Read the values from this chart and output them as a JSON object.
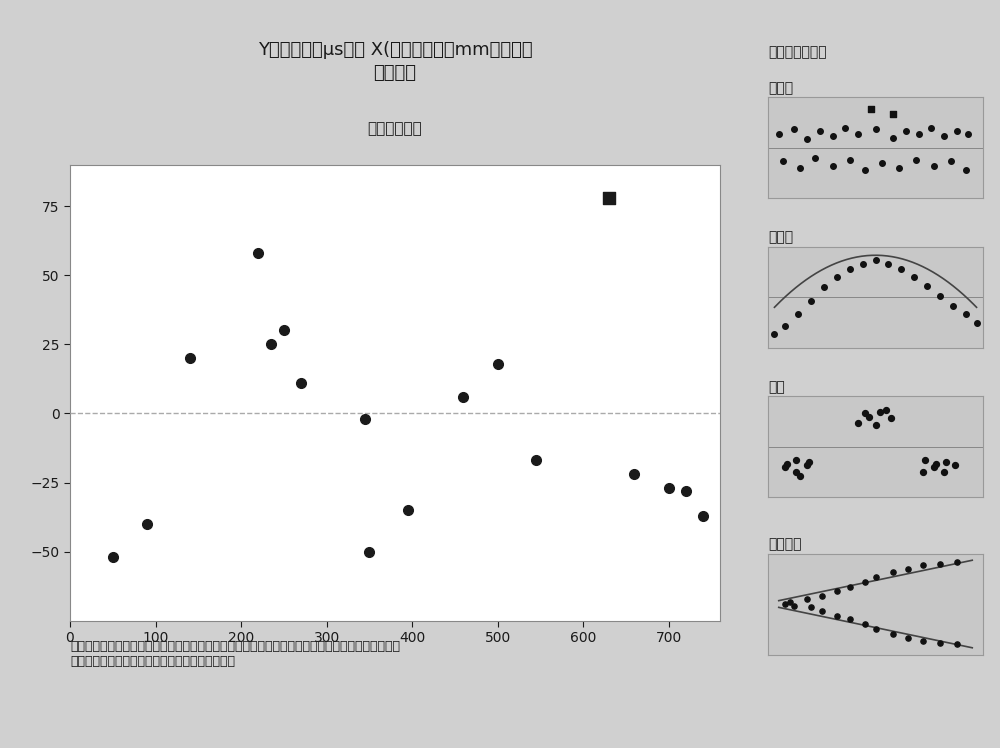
{
  "title_line1": "Y寿命补偿（μs）与 X(厚度偏差）（mm）的回归",
  "title_line2": "诊断报表",
  "subplot_title": "残差与拟合值",
  "bg_color": "#d0d0d0",
  "plot_bg_color": "#ffffff",
  "scatter_x": [
    50,
    90,
    140,
    220,
    235,
    250,
    270,
    345,
    350,
    395,
    460,
    500,
    545,
    630,
    660,
    700,
    720,
    740
  ],
  "scatter_y": [
    -52,
    -40,
    20,
    58,
    25,
    30,
    11,
    -2,
    -50,
    -35,
    6,
    18,
    -17,
    78,
    -22,
    -27,
    -28,
    -37
  ],
  "special_point_idx": 13,
  "special_marker": "s",
  "regular_marker": "o",
  "marker_color": "#1a1a1a",
  "marker_size": 7,
  "special_marker_size": 9,
  "xlim": [
    0,
    760
  ],
  "ylim": [
    -75,
    90
  ],
  "xticks": [
    0,
    100,
    200,
    300,
    400,
    500,
    600,
    700
  ],
  "yticks": [
    -50,
    -25,
    0,
    25,
    50,
    75
  ],
  "hline_y": 0,
  "hline_color": "#aaaaaa",
  "hline_style": "--",
  "annotation_text": "找到可以指示回归模型出现问题的模式，如强弯曲或点群。理想情况下，这些点应该随机落在零的两\n侧。找出会对拟合线产生较强影响的所有大残差。",
  "right_panel_title": "查找以下模式：",
  "right_panel_labels": [
    "残差大",
    "强弯曲",
    "点群",
    "不等变异"
  ],
  "font_color": "#1a1a1a",
  "panel_bg_color": "#c8c8c8"
}
